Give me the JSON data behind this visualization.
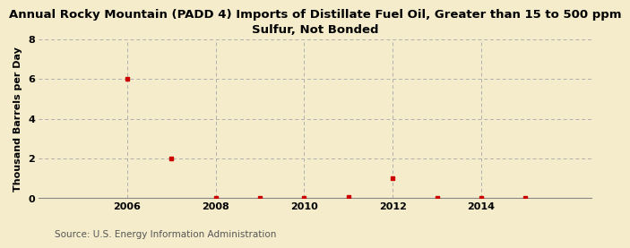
{
  "title": "Annual Rocky Mountain (PADD 4) Imports of Distillate Fuel Oil, Greater than 15 to 500 ppm\nSulfur, Not Bonded",
  "ylabel": "Thousand Barrels per Day",
  "source": "Source: U.S. Energy Information Administration",
  "background_color": "#f5eccb",
  "plot_bg_color": "#f5eccb",
  "x_data": [
    2006,
    2007,
    2008,
    2009,
    2010,
    2011,
    2012,
    2013,
    2014,
    2015
  ],
  "y_data": [
    6.0,
    2.0,
    0.02,
    0.02,
    0.02,
    0.04,
    1.0,
    0.02,
    0.02,
    0.02
  ],
  "marker_color": "#cc0000",
  "marker_size": 3.5,
  "ylim": [
    0,
    8
  ],
  "yticks": [
    0,
    2,
    4,
    6,
    8
  ],
  "xlim": [
    2004.0,
    2016.5
  ],
  "xticks": [
    2006,
    2008,
    2010,
    2012,
    2014
  ],
  "grid_color": "#b0b0b0",
  "title_fontsize": 9.5,
  "axis_fontsize": 8,
  "source_fontsize": 7.5
}
